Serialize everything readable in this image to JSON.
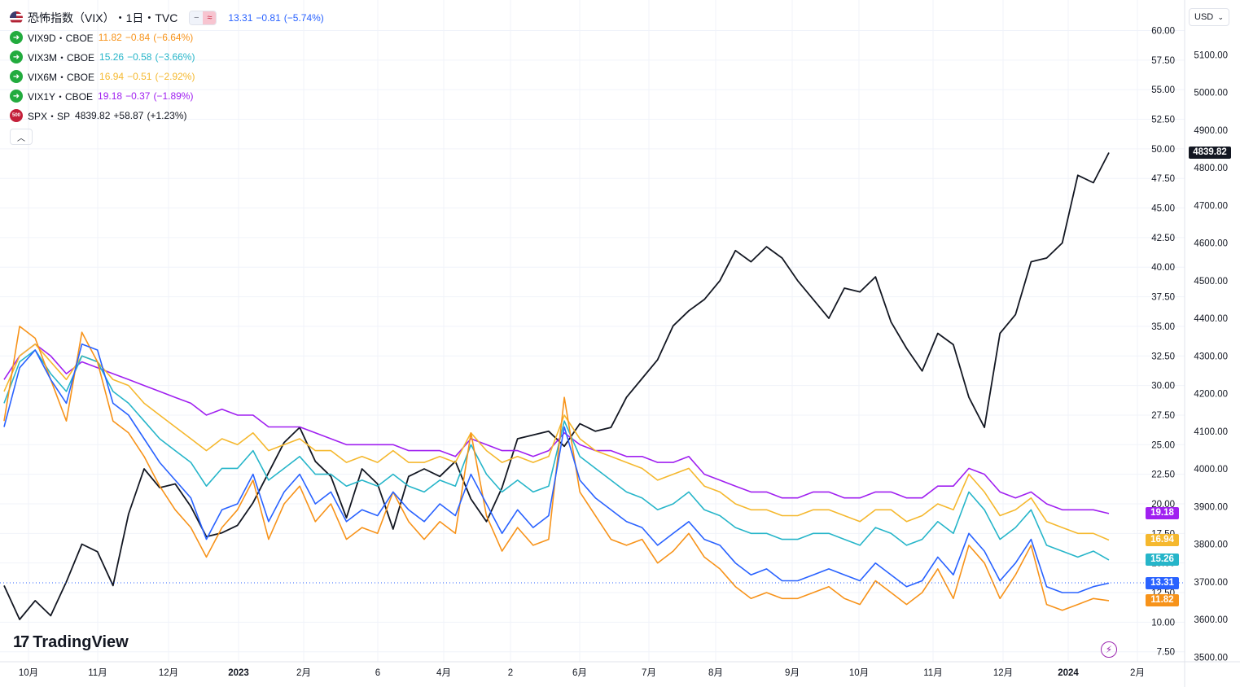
{
  "legend": {
    "main": {
      "title": "恐怖指数（VIX）",
      "interval": "・1日・TVC",
      "value": "13.31",
      "change": "−0.81",
      "pct": "(−5.74%)",
      "color": "#2962ff"
    },
    "series": [
      {
        "symbol": "VIX9D・CBOE",
        "value": "11.82",
        "change": "−0.84",
        "pct": "(−6.64%)",
        "color": "#f7931a",
        "icon": "green-arrow-icon"
      },
      {
        "symbol": "VIX3M・CBOE",
        "value": "15.26",
        "change": "−0.58",
        "pct": "(−3.66%)",
        "color": "#26b5c9",
        "icon": "green-arrow-icon"
      },
      {
        "symbol": "VIX6M・CBOE",
        "value": "16.94",
        "change": "−0.51",
        "pct": "(−2.92%)",
        "color": "#f5b82e",
        "icon": "green-arrow-icon"
      },
      {
        "symbol": "VIX1Y・CBOE",
        "value": "19.18",
        "change": "−0.37",
        "pct": "(−1.89%)",
        "color": "#a020f0",
        "icon": "green-arrow-icon"
      },
      {
        "symbol": "SPX・SP",
        "value": "4839.82",
        "change": "+58.87",
        "pct": "(+1.23%)",
        "color": "#131722",
        "icon": "sp500-icon",
        "icon_text": "500"
      }
    ]
  },
  "currency": "USD",
  "brand": "TradingView",
  "chart_data": {
    "type": "line",
    "x_tick_labels": [
      "10月",
      "11月",
      "12月",
      "2023",
      "2月",
      "6",
      "4月",
      "2",
      "6月",
      "7月",
      "8月",
      "9月",
      "10月",
      "11月",
      "12月",
      "2024",
      "2月"
    ],
    "x_range": [
      "2022-09-26",
      "2024-02-16"
    ],
    "left_axis": {
      "ticks": [
        7.5,
        10,
        12.5,
        15,
        17.5,
        20,
        22.5,
        25,
        27.5,
        30,
        32.5,
        35,
        37.5,
        40,
        42.5,
        45,
        47.5,
        50,
        52.5,
        55,
        57.5,
        60
      ],
      "range": [
        7.5,
        60
      ]
    },
    "right_axis": {
      "ticks": [
        3500,
        3600,
        3700,
        3800,
        3900,
        4000,
        4100,
        4200,
        4300,
        4400,
        4500,
        4600,
        4700,
        4800,
        4900,
        5000,
        5100
      ],
      "range": [
        3500,
        5150
      ]
    },
    "grid": true,
    "last_values": {
      "VIX": 13.31,
      "VIX9D": 11.82,
      "VIX3M": 15.26,
      "VIX6M": 16.94,
      "VIX1Y": 19.18,
      "SPX": 4839.82
    },
    "series": [
      {
        "name": "VIX",
        "axis": "left",
        "color": "#2962ff",
        "values": [
          26.5,
          31.5,
          33.0,
          30.5,
          28.5,
          33.5,
          33.0,
          28.5,
          27.5,
          25.5,
          23.5,
          22.0,
          20.5,
          17.0,
          19.5,
          20.0,
          22.5,
          18.5,
          21.0,
          22.5,
          20.0,
          21.0,
          18.5,
          19.5,
          19.0,
          21.0,
          19.5,
          18.5,
          20.0,
          19.0,
          22.5,
          20.0,
          17.5,
          19.5,
          18.0,
          19.0,
          26.5,
          22.0,
          20.5,
          19.5,
          18.5,
          18.0,
          16.5,
          17.5,
          18.5,
          17.0,
          16.5,
          15.0,
          14.0,
          14.5,
          13.5,
          13.5,
          14.0,
          14.5,
          14.0,
          13.5,
          15.0,
          14.0,
          13.0,
          13.5,
          15.5,
          14.0,
          17.5,
          16.0,
          13.5,
          15.0,
          17.0,
          13.0,
          12.5,
          12.5,
          13.0,
          13.3
        ]
      },
      {
        "name": "VIX9D",
        "axis": "left",
        "color": "#f7931a",
        "values": [
          27.0,
          35.0,
          34.0,
          30.5,
          27.0,
          34.5,
          32.0,
          27.0,
          26.0,
          24.0,
          21.5,
          19.5,
          18.0,
          15.5,
          18.0,
          19.5,
          22.0,
          17.0,
          20.0,
          21.5,
          18.5,
          20.0,
          17.0,
          18.0,
          17.5,
          21.0,
          18.5,
          17.0,
          18.5,
          17.5,
          26.0,
          19.0,
          16.0,
          18.0,
          16.5,
          17.0,
          29.0,
          21.0,
          19.0,
          17.0,
          16.5,
          17.0,
          15.0,
          16.0,
          17.5,
          15.5,
          14.5,
          13.0,
          12.0,
          12.5,
          12.0,
          12.0,
          12.5,
          13.0,
          12.0,
          11.5,
          13.5,
          12.5,
          11.5,
          12.5,
          14.5,
          12.0,
          16.5,
          15.0,
          12.0,
          14.0,
          16.5,
          11.5,
          11.0,
          11.5,
          12.0,
          11.82
        ]
      },
      {
        "name": "VIX3M",
        "axis": "left",
        "color": "#26b5c9",
        "values": [
          28.5,
          32.0,
          33.0,
          31.0,
          29.5,
          32.5,
          32.0,
          29.5,
          28.5,
          27.0,
          25.5,
          24.5,
          23.5,
          21.5,
          23.0,
          23.0,
          24.5,
          22.0,
          23.0,
          24.0,
          22.5,
          22.5,
          21.5,
          22.0,
          21.5,
          22.5,
          21.5,
          21.0,
          22.0,
          21.5,
          25.0,
          22.5,
          21.0,
          22.0,
          21.0,
          21.5,
          27.0,
          24.0,
          23.0,
          22.0,
          21.0,
          20.5,
          19.5,
          20.0,
          21.0,
          19.5,
          19.0,
          18.0,
          17.5,
          17.5,
          17.0,
          17.0,
          17.5,
          17.5,
          17.0,
          16.5,
          18.0,
          17.5,
          16.5,
          17.0,
          18.5,
          17.5,
          21.0,
          19.5,
          17.0,
          18.0,
          19.5,
          16.5,
          16.0,
          15.5,
          16.0,
          15.26
        ]
      },
      {
        "name": "VIX6M",
        "axis": "left",
        "color": "#f5b82e",
        "values": [
          29.5,
          32.5,
          33.5,
          32.0,
          30.5,
          32.5,
          32.0,
          30.5,
          30.0,
          28.5,
          27.5,
          26.5,
          25.5,
          24.5,
          25.5,
          25.0,
          26.0,
          24.5,
          25.0,
          25.5,
          24.5,
          24.5,
          23.5,
          24.0,
          23.5,
          24.5,
          23.5,
          23.5,
          24.0,
          23.5,
          26.0,
          24.5,
          23.5,
          24.0,
          23.5,
          24.0,
          27.5,
          25.5,
          24.5,
          24.0,
          23.5,
          23.0,
          22.0,
          22.5,
          23.0,
          21.5,
          21.0,
          20.0,
          19.5,
          19.5,
          19.0,
          19.0,
          19.5,
          19.5,
          19.0,
          18.5,
          19.5,
          19.5,
          18.5,
          19.0,
          20.0,
          19.5,
          22.5,
          21.0,
          19.0,
          19.5,
          20.5,
          18.5,
          18.0,
          17.5,
          17.5,
          16.94
        ]
      },
      {
        "name": "VIX1Y",
        "axis": "left",
        "color": "#a020f0",
        "values": [
          30.5,
          32.5,
          33.5,
          32.5,
          31.0,
          32.0,
          31.5,
          31.0,
          30.5,
          30.0,
          29.5,
          29.0,
          28.5,
          27.5,
          28.0,
          27.5,
          27.5,
          26.5,
          26.5,
          26.5,
          26.0,
          25.5,
          25.0,
          25.0,
          25.0,
          25.0,
          24.5,
          24.5,
          24.5,
          24.0,
          25.5,
          25.0,
          24.5,
          24.5,
          24.0,
          24.5,
          26.0,
          25.0,
          24.5,
          24.5,
          24.0,
          24.0,
          23.5,
          23.5,
          24.0,
          22.5,
          22.0,
          21.5,
          21.0,
          21.0,
          20.5,
          20.5,
          21.0,
          21.0,
          20.5,
          20.5,
          21.0,
          21.0,
          20.5,
          20.5,
          21.5,
          21.5,
          23.0,
          22.5,
          21.0,
          20.5,
          21.0,
          20.0,
          19.5,
          19.5,
          19.5,
          19.18
        ]
      },
      {
        "name": "SPX",
        "axis": "right",
        "color": "#131722",
        "values": [
          3690,
          3600,
          3650,
          3610,
          3700,
          3800,
          3780,
          3690,
          3880,
          4000,
          3950,
          3960,
          3900,
          3820,
          3830,
          3850,
          3910,
          3990,
          4070,
          4110,
          4020,
          3980,
          3870,
          4000,
          3960,
          3840,
          3980,
          4000,
          3980,
          4020,
          3920,
          3860,
          3950,
          4080,
          4090,
          4100,
          4060,
          4120,
          4100,
          4110,
          4190,
          4240,
          4290,
          4380,
          4420,
          4450,
          4500,
          4580,
          4550,
          4590,
          4560,
          4500,
          4450,
          4400,
          4480,
          4470,
          4510,
          4390,
          4320,
          4260,
          4360,
          4330,
          4190,
          4110,
          4360,
          4410,
          4550,
          4560,
          4600,
          4780,
          4760,
          4840
        ]
      }
    ]
  }
}
